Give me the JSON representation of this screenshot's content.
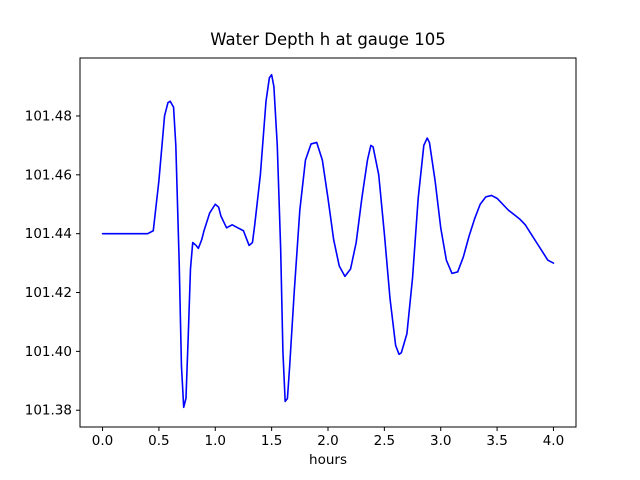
{
  "figure": {
    "background": "#ffffff",
    "line_color": "#0000ff",
    "axes_color": "#000000"
  },
  "chart_data": {
    "type": "line",
    "title": "Water Depth h at gauge 105",
    "xlabel": "hours",
    "ylabel": "",
    "grid": false,
    "legend": null,
    "xlim": [
      -0.2,
      4.2
    ],
    "ylim": [
      101.3743,
      101.4997
    ],
    "xticks": [
      0.0,
      0.5,
      1.0,
      1.5,
      2.0,
      2.5,
      3.0,
      3.5,
      4.0
    ],
    "xtick_labels": [
      "0.0",
      "0.5",
      "1.0",
      "1.5",
      "2.0",
      "2.5",
      "3.0",
      "3.5",
      "4.0"
    ],
    "yticks": [
      101.38,
      101.4,
      101.42,
      101.44,
      101.46,
      101.48
    ],
    "ytick_labels": [
      "101.38",
      "101.40",
      "101.42",
      "101.44",
      "101.46",
      "101.48"
    ],
    "series": [
      {
        "name": "water depth h",
        "color": "#0000ff",
        "x": [
          0.0,
          0.05,
          0.1,
          0.15,
          0.2,
          0.25,
          0.3,
          0.35,
          0.4,
          0.45,
          0.5,
          0.55,
          0.58,
          0.6,
          0.63,
          0.65,
          0.68,
          0.7,
          0.72,
          0.74,
          0.76,
          0.78,
          0.8,
          0.83,
          0.85,
          0.88,
          0.9,
          0.95,
          1.0,
          1.03,
          1.05,
          1.1,
          1.15,
          1.2,
          1.25,
          1.28,
          1.3,
          1.33,
          1.35,
          1.4,
          1.45,
          1.48,
          1.5,
          1.52,
          1.55,
          1.58,
          1.6,
          1.62,
          1.64,
          1.66,
          1.7,
          1.75,
          1.8,
          1.85,
          1.9,
          1.95,
          2.0,
          2.05,
          2.1,
          2.15,
          2.2,
          2.25,
          2.3,
          2.35,
          2.38,
          2.4,
          2.45,
          2.5,
          2.55,
          2.6,
          2.63,
          2.65,
          2.7,
          2.75,
          2.8,
          2.85,
          2.88,
          2.9,
          2.95,
          3.0,
          3.05,
          3.1,
          3.15,
          3.2,
          3.25,
          3.3,
          3.35,
          3.4,
          3.45,
          3.5,
          3.55,
          3.6,
          3.65,
          3.7,
          3.75,
          3.8,
          3.85,
          3.9,
          3.95,
          4.0
        ],
        "y": [
          101.44,
          101.44,
          101.44,
          101.44,
          101.44,
          101.44,
          101.44,
          101.44,
          101.44,
          101.441,
          101.458,
          101.48,
          101.4845,
          101.485,
          101.483,
          101.47,
          101.43,
          101.395,
          101.381,
          101.384,
          101.405,
          101.428,
          101.437,
          101.436,
          101.435,
          101.438,
          101.441,
          101.447,
          101.45,
          101.449,
          101.446,
          101.442,
          101.443,
          101.442,
          101.441,
          101.438,
          101.436,
          101.437,
          101.443,
          101.46,
          101.485,
          101.493,
          101.494,
          101.49,
          101.47,
          101.435,
          101.4,
          101.383,
          101.384,
          101.395,
          101.42,
          101.448,
          101.465,
          101.4705,
          101.471,
          101.465,
          101.452,
          101.438,
          101.429,
          101.4255,
          101.428,
          101.437,
          101.452,
          101.465,
          101.47,
          101.4695,
          101.46,
          101.44,
          101.418,
          101.402,
          101.399,
          101.3995,
          101.406,
          101.425,
          101.452,
          101.47,
          101.4725,
          101.471,
          101.458,
          101.442,
          101.431,
          101.4265,
          101.427,
          101.432,
          101.439,
          101.445,
          101.45,
          101.4525,
          101.453,
          101.452,
          101.45,
          101.448,
          101.4465,
          101.445,
          101.443,
          101.44,
          101.437,
          101.434,
          101.431,
          101.43
        ]
      }
    ]
  }
}
